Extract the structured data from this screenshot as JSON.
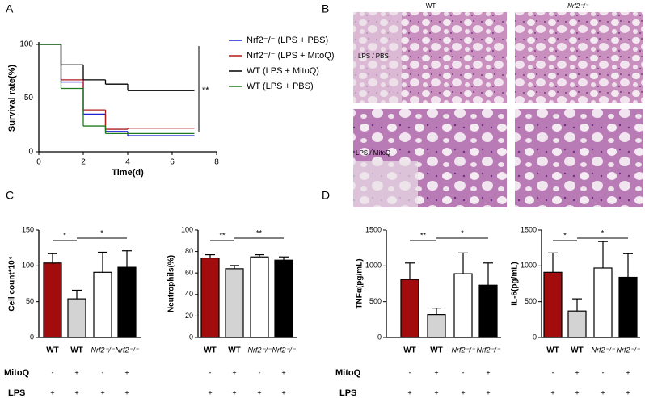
{
  "figure": {
    "panel_labels": [
      "A",
      "B",
      "C",
      "D"
    ],
    "histology": {
      "columns": [
        "WT",
        "Nrf2⁻/⁻"
      ],
      "rows": [
        "LPS / PBS",
        "LPS / MitoQ"
      ]
    },
    "condition_names": [
      "MitoQ",
      "LPS"
    ]
  },
  "chart_data": [
    {
      "type": "step",
      "x_label": "Time(d)",
      "y_label": "Survival rate(%)",
      "annotation": "**",
      "x": [
        0,
        1,
        2,
        3,
        4,
        5,
        6,
        7
      ],
      "xlim": [
        0,
        8
      ],
      "xticks": [
        0,
        2,
        4,
        6,
        8
      ],
      "ylim": [
        0,
        100
      ],
      "yticks": [
        0,
        50,
        100
      ],
      "series": [
        {
          "name": "Nrf2⁻/⁻ (LPS + PBS)",
          "color": "#1f1fd6",
          "values": [
            100,
            65,
            35,
            19,
            15,
            15,
            15,
            15
          ]
        },
        {
          "name": "Nrf2⁻/⁻ (LPS + MitoQ)",
          "color": "#b01c1c",
          "values": [
            100,
            67,
            39,
            21,
            22,
            22,
            22,
            22
          ]
        },
        {
          "name": "WT (LPS + MitoQ)",
          "color": "#000000",
          "values": [
            100,
            81,
            67,
            63,
            57,
            57,
            57,
            57
          ]
        },
        {
          "name": "WT (LPS + PBS)",
          "color": "#1e7a1e",
          "values": [
            100,
            59,
            24,
            17,
            17,
            17,
            17,
            17
          ]
        }
      ]
    },
    {
      "type": "bar",
      "y_label": "Cell count*10⁴",
      "categories": [
        "WT",
        "WT",
        "Nrf2⁻/⁻",
        "Nrf2⁻/⁻"
      ],
      "values": [
        104,
        54,
        91,
        98
      ],
      "errors": [
        13,
        12,
        28,
        23
      ],
      "colors": [
        "#a30c0c",
        "#d3d3d3",
        "#ffffff",
        "#000000"
      ],
      "ylim": [
        0,
        150
      ],
      "yticks": [
        0,
        50,
        100,
        150
      ],
      "significance": [
        "*",
        "*"
      ],
      "conditions": [
        [
          "-",
          "+",
          "-",
          "+"
        ],
        [
          "+",
          "+",
          "+",
          "+"
        ]
      ]
    },
    {
      "type": "bar",
      "y_label": "Neutrophils(%)",
      "categories": [
        "WT",
        "WT",
        "Nrf2⁻/⁻",
        "Nrf2⁻/⁻"
      ],
      "values": [
        74,
        64,
        75,
        72
      ],
      "errors": [
        3,
        3,
        2,
        3
      ],
      "colors": [
        "#a30c0c",
        "#d3d3d3",
        "#ffffff",
        "#000000"
      ],
      "ylim": [
        0,
        100
      ],
      "yticks": [
        0,
        20,
        40,
        60,
        80,
        100
      ],
      "significance": [
        "**",
        "**"
      ],
      "conditions": [
        [
          "-",
          "+",
          "-",
          "+"
        ],
        [
          "+",
          "+",
          "+",
          "+"
        ]
      ]
    },
    {
      "type": "bar",
      "y_label": "TNFα(pg/mL)",
      "categories": [
        "WT",
        "WT",
        "Nrf2⁻/⁻",
        "Nrf2⁻/⁻"
      ],
      "values": [
        810,
        320,
        890,
        730
      ],
      "errors": [
        230,
        90,
        290,
        310
      ],
      "colors": [
        "#a30c0c",
        "#d3d3d3",
        "#ffffff",
        "#000000"
      ],
      "ylim": [
        0,
        1500
      ],
      "yticks": [
        0,
        500,
        1000,
        1500
      ],
      "significance": [
        "**",
        "*"
      ],
      "conditions": [
        [
          "-",
          "+",
          "-",
          "+"
        ],
        [
          "+",
          "+",
          "+",
          "+"
        ]
      ]
    },
    {
      "type": "bar",
      "y_label": "IL-6(pg/mL)",
      "categories": [
        "WT",
        "WT",
        "Nrf2⁻/⁻",
        "Nrf2⁻/⁻"
      ],
      "values": [
        910,
        370,
        970,
        840
      ],
      "errors": [
        270,
        170,
        370,
        330
      ],
      "colors": [
        "#a30c0c",
        "#d3d3d3",
        "#ffffff",
        "#000000"
      ],
      "ylim": [
        0,
        1500
      ],
      "yticks": [
        0,
        500,
        1000,
        1500
      ],
      "significance": [
        "*",
        "*"
      ],
      "conditions": [
        [
          "-",
          "+",
          "-",
          "+"
        ],
        [
          "+",
          "+",
          "+",
          "+"
        ]
      ]
    }
  ]
}
